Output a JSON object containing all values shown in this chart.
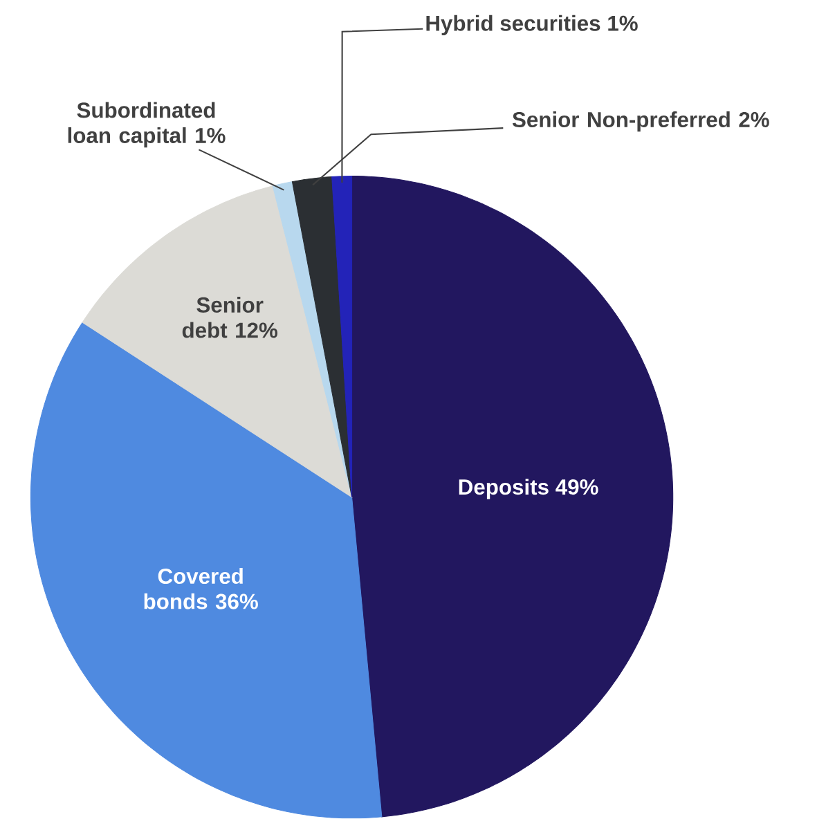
{
  "chart_data": {
    "type": "pie",
    "categories": [
      "Deposits",
      "Covered bonds",
      "Senior debt",
      "Subordinated loan capital",
      "Senior Non-preferred",
      "Hybrid securities"
    ],
    "values": [
      49,
      36,
      12,
      1,
      2,
      1
    ],
    "value_labels": [
      "49%",
      "36%",
      "12%",
      "1%",
      "2%",
      "1%"
    ],
    "colors": [
      "#22175f",
      "#4f8ae0",
      "#dcdbd6",
      "#b8d8ee",
      "#2b2f33",
      "#2323b8"
    ]
  }
}
